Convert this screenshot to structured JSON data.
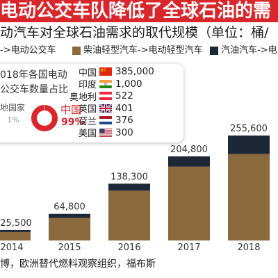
{
  "header": {
    "title": "电动公交车队降低了全球石油的需",
    "subtitle": "动汽车对全球石油需求的取代规模（单位：桶/",
    "banner_color": "#d8262b"
  },
  "inset": {
    "title_lines": [
      "018年各国电动",
      "公交车数量占比"
    ],
    "countries": [
      {
        "name": "中国",
        "flag": "china-flag-icon",
        "value": "385,000"
      },
      {
        "name": "印度",
        "flag": "india-flag-icon",
        "value": "1,000"
      },
      {
        "name": "奥地利",
        "flag": "austria-flag-icon",
        "value": "522"
      },
      {
        "name": "英国",
        "flag": "uk-flag-icon",
        "value": "401"
      },
      {
        "name": "荷兰",
        "flag": "netherlands-flag-icon",
        "value": "376"
      },
      {
        "name": "美国",
        "flag": "usa-flag-icon",
        "value": "300"
      }
    ]
  },
  "chart_data": [
    {
      "type": "bar",
      "stacked": true,
      "categories": [
        "2014",
        "2015",
        "2016",
        "2017",
        "2018"
      ],
      "value_labels": [
        "25,500",
        "64,800",
        "138,300",
        "204,800",
        "255,600"
      ],
      "series": [
        {
          "color": "#8a693d",
          "values": [
            20500,
            54800,
            121300,
            179800,
            210600
          ]
        },
        {
          "color": "#1d2735",
          "values": [
            5000,
            10000,
            17000,
            25000,
            45000
          ]
        }
      ],
      "legend": [
        {
          "label": "->电动公交车",
          "color": null
        },
        {
          "label": "柴油轻型汽车->电动轻型汽车",
          "color": "#8a693d"
        },
        {
          "label": "汽油汽车->电",
          "color": "#1d2735"
        }
      ],
      "legend_position": "top",
      "grid": false
    },
    {
      "type": "pie",
      "style": "donut",
      "slices": [
        {
          "label": "中国",
          "value": 99,
          "value_label": "99%",
          "color": "#d8262b"
        },
        {
          "label": "地国家",
          "value": 1,
          "value_label": "1%",
          "color": "#d0d0d0"
        }
      ]
    }
  ],
  "footer": {
    "source": "博，欧洲替代燃料观察组织，福布斯"
  }
}
